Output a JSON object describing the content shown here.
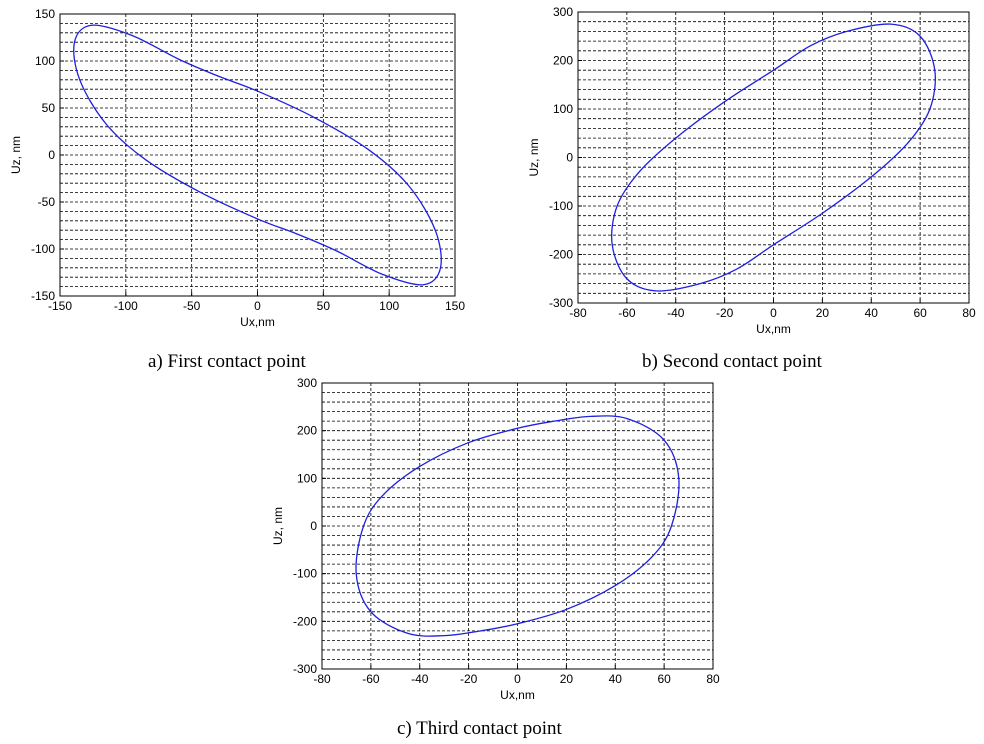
{
  "chart_data": [
    {
      "type": "line",
      "caption": "a) First contact point",
      "xlabel": "Ux,nm",
      "ylabel": "Uz, nm",
      "xlim": [
        -150,
        150
      ],
      "ylim": [
        -150,
        150
      ],
      "xticks": [
        -150,
        -100,
        -50,
        0,
        50,
        100,
        150
      ],
      "yticks": [
        -150,
        -100,
        -50,
        0,
        50,
        100,
        150
      ],
      "grid": true,
      "series": [
        {
          "color": "#1f1fe0",
          "x": [
            0,
            43,
            85,
            115,
            135,
            139,
            126,
            95,
            60,
            30,
            0,
            -43,
            -85,
            -115,
            -135,
            -139,
            -126,
            -95,
            -60,
            -30,
            0
          ],
          "y": [
            68,
            40,
            5,
            -33,
            -80,
            -120,
            -138,
            -127,
            -102,
            -84,
            -68,
            -40,
            -5,
            33,
            80,
            120,
            138,
            127,
            102,
            84,
            68
          ]
        }
      ]
    },
    {
      "type": "line",
      "caption": "b) Second contact point",
      "xlabel": "Ux,nm",
      "ylabel": "Uz, nm",
      "xlim": [
        -80,
        80
      ],
      "ylim": [
        -300,
        300
      ],
      "xticks": [
        -80,
        -60,
        -40,
        -20,
        0,
        20,
        40,
        60,
        80
      ],
      "yticks": [
        -300,
        -200,
        -100,
        0,
        100,
        200,
        300
      ],
      "grid": true,
      "series": [
        {
          "color": "#1f1fe0",
          "x": [
            0,
            20,
            40,
            55,
            64,
            66,
            60,
            48,
            30,
            15,
            0,
            -20,
            -40,
            -55,
            -64,
            -66,
            -60,
            -48,
            -30,
            -15,
            0
          ],
          "y": [
            -180,
            -115,
            -40,
            30,
            100,
            180,
            250,
            275,
            260,
            230,
            180,
            115,
            40,
            -30,
            -100,
            -180,
            -250,
            -275,
            -260,
            -230,
            -180
          ]
        }
      ]
    },
    {
      "type": "line",
      "caption": "c) Third contact point",
      "xlabel": "Ux,nm",
      "ylabel": "Uz, nm",
      "xlim": [
        -80,
        80
      ],
      "ylim": [
        -300,
        300
      ],
      "xticks": [
        -80,
        -60,
        -40,
        -20,
        0,
        20,
        40,
        60,
        80
      ],
      "yticks": [
        -300,
        -200,
        -100,
        0,
        100,
        200,
        300
      ],
      "grid": true,
      "series": [
        {
          "color": "#1f1fe0",
          "x": [
            0,
            20,
            40,
            55,
            63,
            66,
            60,
            45,
            30,
            15,
            0,
            -20,
            -40,
            -55,
            -63,
            -66,
            -60,
            -45,
            -30,
            -15,
            0
          ],
          "y": [
            -205,
            -175,
            -125,
            -65,
            0,
            100,
            180,
            225,
            230,
            220,
            205,
            175,
            125,
            65,
            0,
            -100,
            -180,
            -225,
            -230,
            -220,
            -205
          ]
        }
      ]
    }
  ]
}
